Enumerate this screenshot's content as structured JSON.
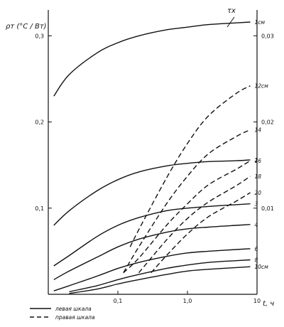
{
  "chart_data": {
    "type": "line",
    "x_scale": "log",
    "xlim": [
      0.01,
      10
    ],
    "xlabel": "t, ч",
    "x_ticks": [
      0.1,
      1.0,
      10
    ],
    "x_tick_labels": [
      "0,1",
      "1,0",
      "10"
    ],
    "left_axis": {
      "label": "ρт (°C / Вт)",
      "ylim": [
        0,
        0.33
      ],
      "ticks": [
        0.1,
        0.2,
        0.3
      ],
      "tick_labels": [
        "0,1",
        "0,2",
        "0,3"
      ]
    },
    "right_axis": {
      "label": "τx",
      "ylim": [
        0,
        0.033
      ],
      "ticks": [
        0.01,
        0.02,
        0.03
      ],
      "tick_labels": [
        "0,01",
        "0,02",
        "0,03"
      ]
    },
    "legend": [
      {
        "style": "solid",
        "text": "левая шкала"
      },
      {
        "style": "dashed",
        "text": "правая шкала"
      }
    ],
    "series": [
      {
        "name": "1см",
        "axis": "left",
        "style": "solid",
        "x": [
          0.012,
          0.02,
          0.05,
          0.1,
          0.2,
          0.5,
          1,
          2,
          5,
          8
        ],
        "y": [
          0.23,
          0.255,
          0.28,
          0.292,
          0.3,
          0.307,
          0.31,
          0.313,
          0.315,
          0.316
        ]
      },
      {
        "name": "2",
        "axis": "left",
        "style": "solid",
        "x": [
          0.012,
          0.02,
          0.05,
          0.1,
          0.2,
          0.5,
          1,
          2,
          5,
          8
        ],
        "y": [
          0.08,
          0.097,
          0.12,
          0.133,
          0.142,
          0.149,
          0.152,
          0.154,
          0.155,
          0.156
        ]
      },
      {
        "name": "3",
        "axis": "left",
        "style": "solid",
        "x": [
          0.012,
          0.02,
          0.05,
          0.1,
          0.2,
          0.5,
          1,
          2,
          5,
          8
        ],
        "y": [
          0.033,
          0.045,
          0.067,
          0.08,
          0.089,
          0.097,
          0.1,
          0.102,
          0.104,
          0.105
        ]
      },
      {
        "name": "4",
        "axis": "left",
        "style": "solid",
        "x": [
          0.012,
          0.02,
          0.05,
          0.1,
          0.2,
          0.5,
          1,
          2,
          5,
          8
        ],
        "y": [
          0.017,
          0.027,
          0.043,
          0.055,
          0.064,
          0.072,
          0.076,
          0.078,
          0.08,
          0.081
        ]
      },
      {
        "name": "6",
        "axis": "left",
        "style": "solid",
        "x": [
          0.012,
          0.02,
          0.05,
          0.1,
          0.2,
          0.5,
          1,
          2,
          5,
          8
        ],
        "y": [
          0.004,
          0.01,
          0.021,
          0.03,
          0.037,
          0.044,
          0.048,
          0.05,
          0.052,
          0.053
        ]
      },
      {
        "name": "8",
        "axis": "left",
        "style": "solid",
        "x": [
          0.02,
          0.05,
          0.1,
          0.2,
          0.5,
          1,
          2,
          5,
          8
        ],
        "y": [
          0.003,
          0.01,
          0.017,
          0.023,
          0.03,
          0.034,
          0.037,
          0.039,
          0.04
        ]
      },
      {
        "name": "10см",
        "axis": "left",
        "style": "solid",
        "x": [
          0.02,
          0.05,
          0.1,
          0.2,
          0.5,
          1,
          2,
          5,
          8
        ],
        "y": [
          0.001,
          0.006,
          0.012,
          0.017,
          0.023,
          0.027,
          0.029,
          0.031,
          0.032
        ]
      },
      {
        "name": "12см",
        "axis": "right",
        "style": "dashed",
        "x": [
          0.15,
          0.2,
          0.5,
          1,
          2,
          5,
          8
        ],
        "y": [
          0.0055,
          0.0075,
          0.0135,
          0.0175,
          0.0207,
          0.0233,
          0.0242
        ]
      },
      {
        "name": "14",
        "axis": "right",
        "style": "dashed",
        "x": [
          0.12,
          0.2,
          0.5,
          1,
          2,
          5,
          8
        ],
        "y": [
          0.0025,
          0.0055,
          0.0105,
          0.0137,
          0.0163,
          0.0183,
          0.0191
        ]
      },
      {
        "name": "16",
        "axis": "right",
        "style": "dashed",
        "x": [
          0.12,
          0.2,
          0.5,
          1,
          2,
          5,
          8
        ],
        "y": [
          0.0025,
          0.0042,
          0.008,
          0.0105,
          0.0127,
          0.0145,
          0.0155
        ]
      },
      {
        "name": "18",
        "axis": "right",
        "style": "dashed",
        "x": [
          0.2,
          0.5,
          1,
          2,
          5,
          8
        ],
        "y": [
          0.0025,
          0.0063,
          0.0088,
          0.0107,
          0.0126,
          0.0137
        ]
      },
      {
        "name": "20",
        "axis": "right",
        "style": "dashed",
        "x": [
          0.3,
          0.5,
          1,
          2,
          5,
          8
        ],
        "y": [
          0.0025,
          0.0045,
          0.007,
          0.009,
          0.0108,
          0.0118
        ]
      }
    ]
  }
}
